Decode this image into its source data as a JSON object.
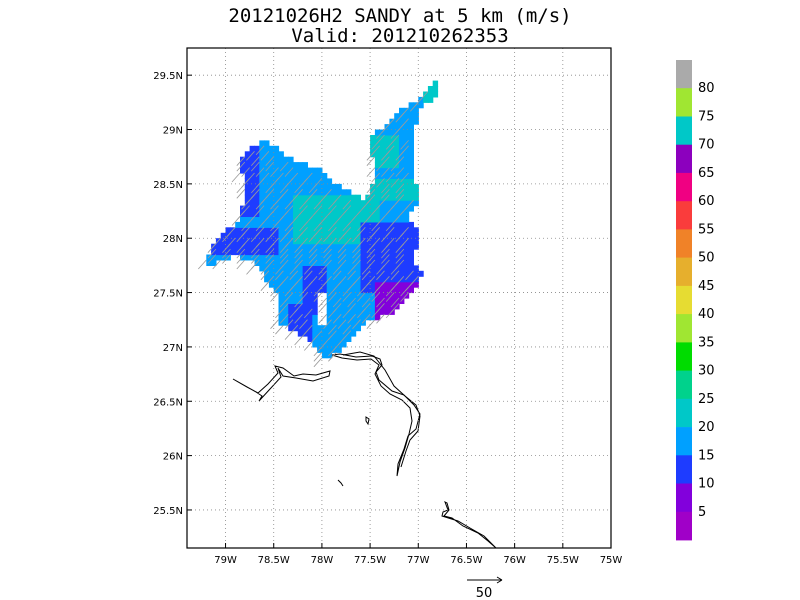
{
  "chart_data": {
    "type": "heatmap",
    "title": "20121026H2 SANDY at 5 km (m/s)",
    "subtitle": "Valid: 201210262353",
    "xlim": [
      -79.4,
      -75.0
    ],
    "ylim": [
      25.15,
      29.75
    ],
    "x_ticks": [
      {
        "value": -79.0,
        "label": "79W"
      },
      {
        "value": -78.5,
        "label": "78.5W"
      },
      {
        "value": -78.0,
        "label": "78W"
      },
      {
        "value": -77.5,
        "label": "77.5W"
      },
      {
        "value": -77.0,
        "label": "77W"
      },
      {
        "value": -76.5,
        "label": "76.5W"
      },
      {
        "value": -76.0,
        "label": "76W"
      },
      {
        "value": -75.5,
        "label": "75.5W"
      },
      {
        "value": -75.0,
        "label": "75W"
      }
    ],
    "y_ticks": [
      {
        "value": 25.5,
        "label": "25.5N"
      },
      {
        "value": 26.0,
        "label": "26N"
      },
      {
        "value": 26.5,
        "label": "26.5N"
      },
      {
        "value": 27.0,
        "label": "27N"
      },
      {
        "value": 27.5,
        "label": "27.5N"
      },
      {
        "value": 28.0,
        "label": "28N"
      },
      {
        "value": 28.5,
        "label": "28.5N"
      },
      {
        "value": 29.0,
        "label": "29N"
      },
      {
        "value": 29.5,
        "label": "29.5N"
      }
    ],
    "grid": true,
    "colorbar": {
      "colors": [
        "#a000c8",
        "#8200dc",
        "#1e3cff",
        "#00a0ff",
        "#00c8c8",
        "#00d28c",
        "#00dc00",
        "#a0e632",
        "#e6dc32",
        "#e6af2d",
        "#f08228",
        "#fa3c3c",
        "#f00082",
        "#8c00be",
        "#00c8c8",
        "#a0e632",
        "#aaaaaa"
      ],
      "labels": [
        "5",
        "10",
        "15",
        "20",
        "25",
        "30",
        "35",
        "40",
        "45",
        "50",
        "55",
        "60",
        "65",
        "70",
        "75",
        "80"
      ]
    },
    "field": {
      "lon_start": -79.3,
      "lat_start": 27.55,
      "step": 0.05,
      "comment_free_rows": true,
      "rows": [
        "........................................................",
        "..................................................##....",
        "................................................#####...",
        ".................................................###....",
        "...............................................##.......",
        "...............................................###......",
        "...........................................######........",
        "...........................................#####........",
        "...........................................#####........",
        "......................................#..#.#####........",
        ".............#####............#####......######.........",
        "............#######........#########....#######.........",
        "...........##############################.#####.........",
        "...........###############################.#####........",
        "...........###############################.#####........",
        "...........###############################.#####........",
        "..........###################################...........",
        "..........##################################............",
        "..........##################################....#.......",
        ".........###################################...##.......",
        ".........###################################...###......",
        "...#.....######################################.........",
        "..####...#######################################........",
        "..######.########################################.......",
        ".#######.########################################.......",
        "..#######.########################################......",
        "...######.########################################......",
        "....#####..#######################################......",
        ".............#####################################......",
        "...............##################################.......",
        "................####.#####################......#........",
        ".................####.####.######.##.######..............",
        "...................####.######.##.########...............",
        "....................##.#######.########.......................",
        ".....................##.######.######.........................",
        "......................#.####.##.#######.......................",
        "......................#.####.##.#####..........................",
        "........................###...##.###...........................",
        "..........................###.###..............................",
        "............................###................................"
      ],
      "values_note": ""
    },
    "wind_units": "m/s",
    "reference_vector": {
      "label": "50"
    }
  }
}
